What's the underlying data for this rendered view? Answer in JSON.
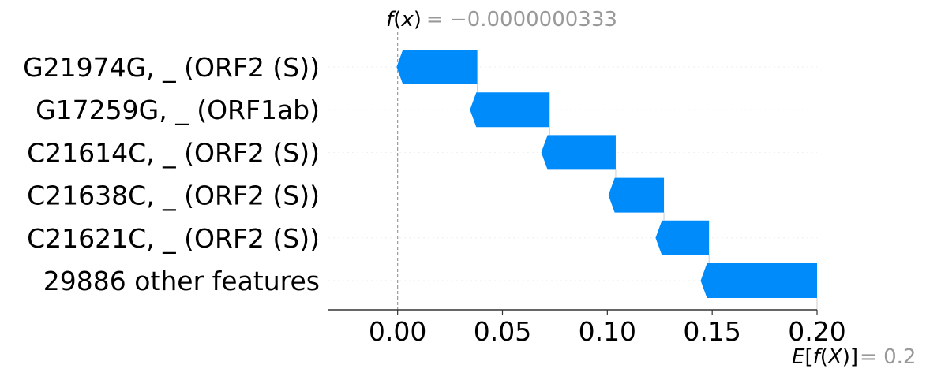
{
  "chart_data": {
    "type": "waterfall",
    "title": "",
    "xlabel": "",
    "ylabel": "",
    "xlim": [
      -0.033,
      0.2
    ],
    "x_ticks": [
      0.0,
      0.05,
      0.1,
      0.15,
      0.2
    ],
    "x_tick_labels": [
      "0.00",
      "0.05",
      "0.10",
      "0.15",
      "0.20"
    ],
    "bar_color": "#008bfb",
    "expected_value": 0.2,
    "output_value": -3.33e-08,
    "fx_label": {
      "f": "f",
      "open": "(",
      "x": "x",
      "close": ")",
      "value_text": "= −0.0000000333"
    },
    "efx_label": {
      "E": "E",
      "open1": "[",
      "f": "f",
      "open2": "(",
      "X": "X",
      "close": ")]",
      "value_text": "= 0.2"
    },
    "features": [
      {
        "name": "G21974G, _ (ORF2 (S))",
        "start": 0.038,
        "end": -0.0005
      },
      {
        "name": "G17259G, _ (ORF1ab)",
        "start": 0.0725,
        "end": 0.0345
      },
      {
        "name": "C21614C, _ (ORF2 (S))",
        "start": 0.104,
        "end": 0.0685
      },
      {
        "name": "C21638C, _ (ORF2 (S))",
        "start": 0.127,
        "end": 0.1005
      },
      {
        "name": "C21621C, _ (ORF2 (S))",
        "start": 0.1485,
        "end": 0.123
      },
      {
        "name": "29886 other features",
        "start": 0.2,
        "end": 0.1445
      }
    ]
  }
}
